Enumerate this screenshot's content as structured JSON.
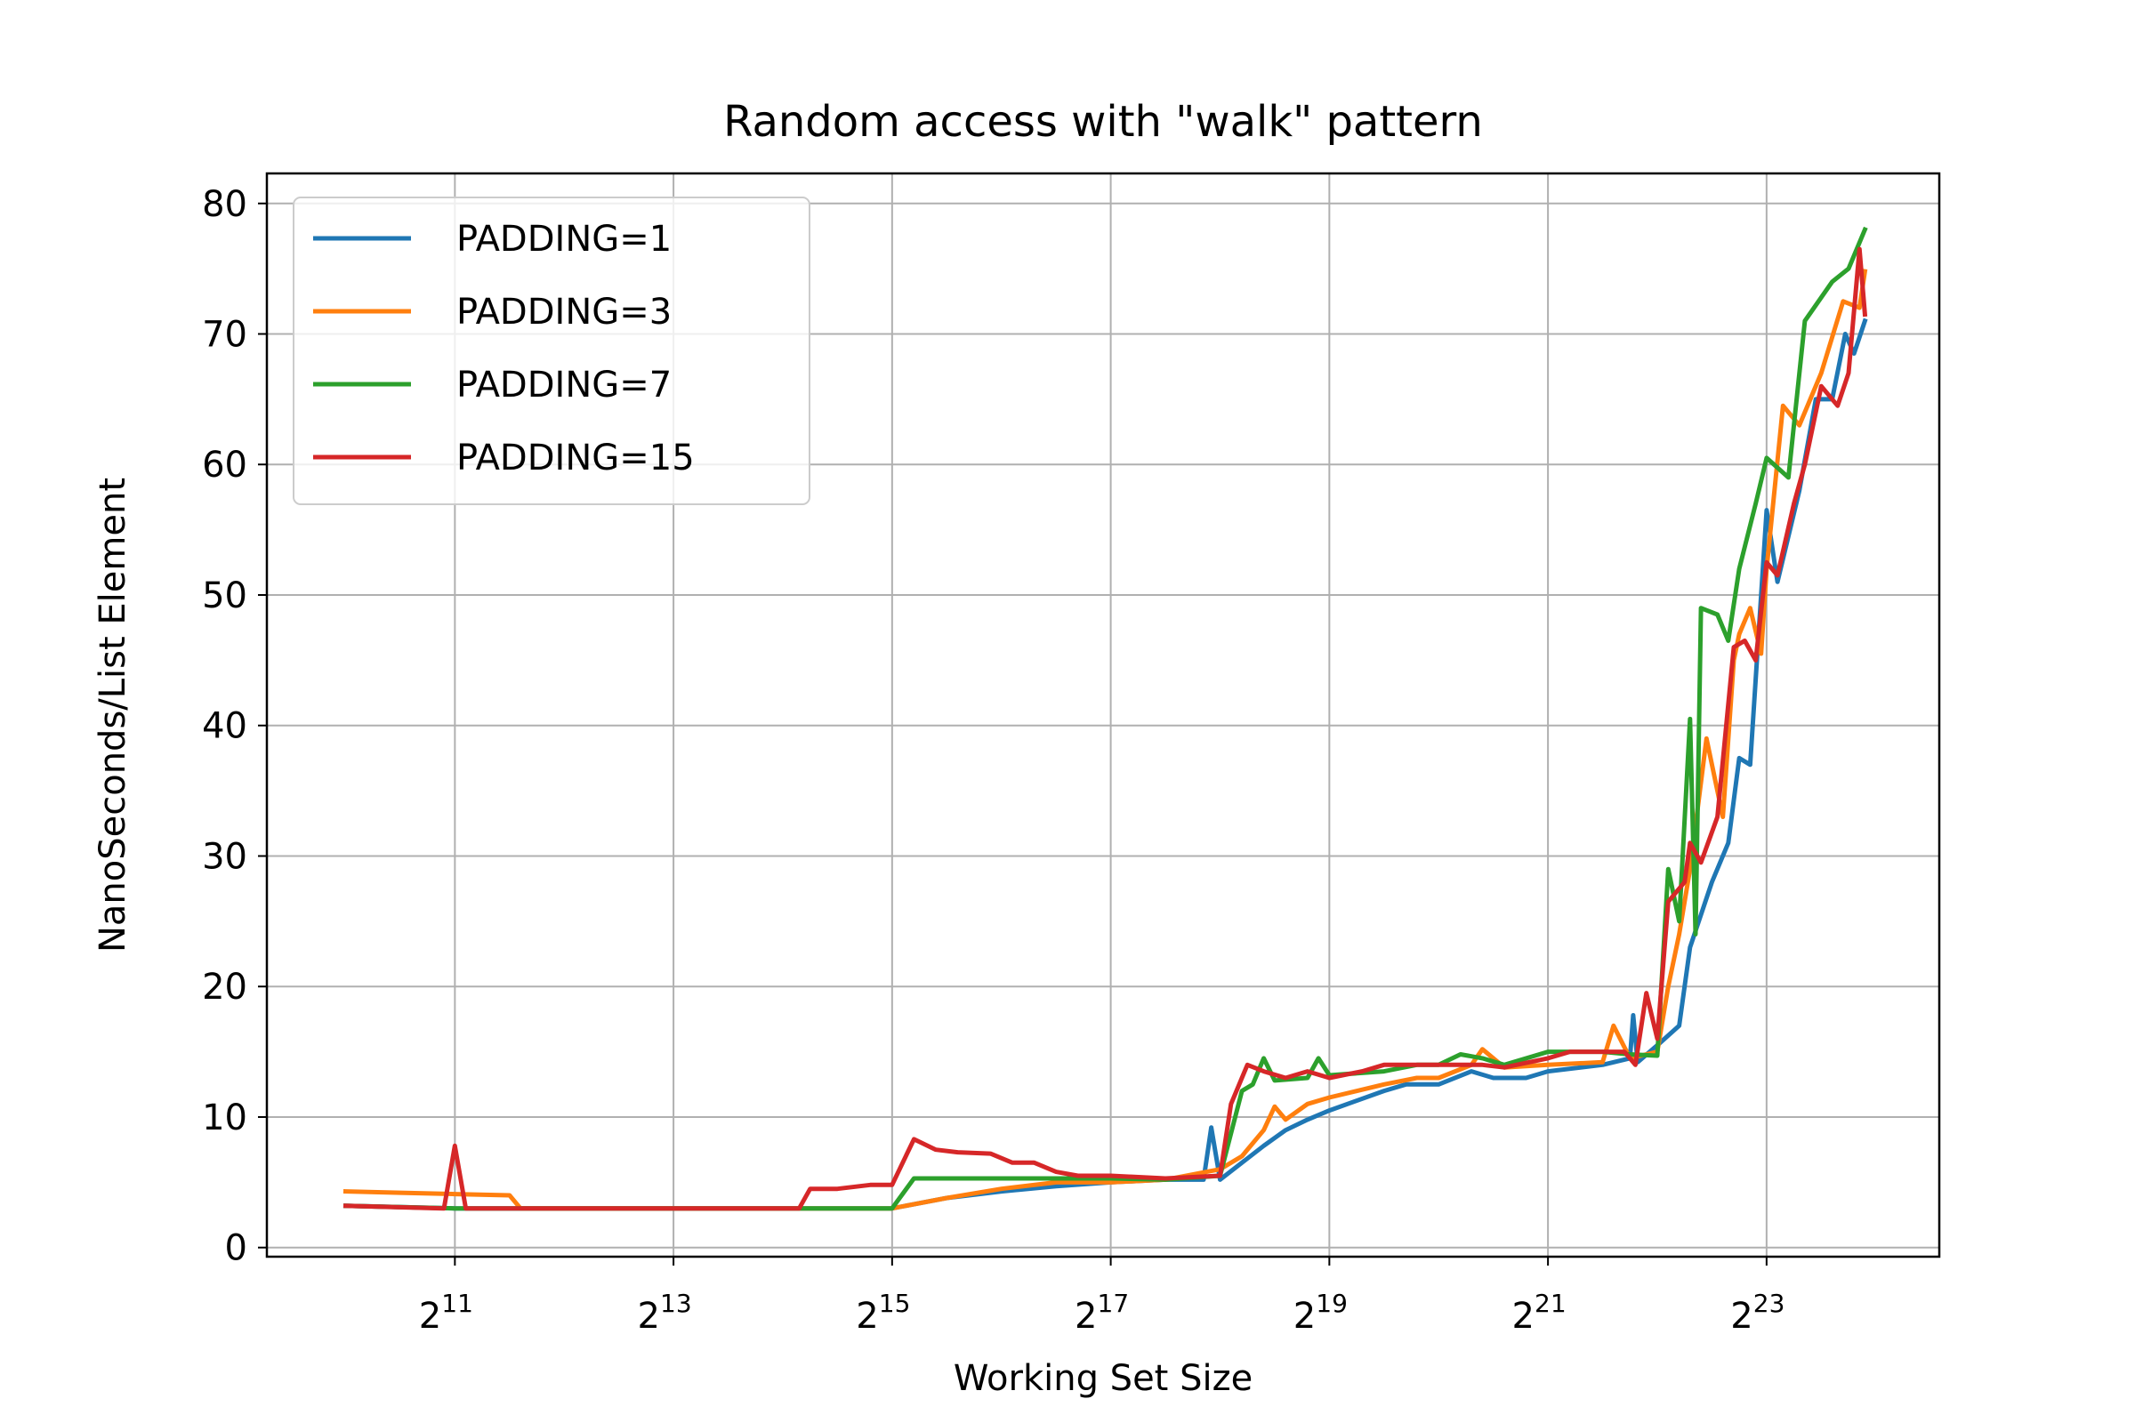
{
  "chart_data": {
    "type": "line",
    "title": "Random access with \"walk\" pattern",
    "xlabel": "Working Set Size",
    "ylabel": "NanoSeconds/List Element",
    "x_scale": "log2",
    "x_base_label": "2",
    "x_ticks_exponents": [
      11,
      13,
      15,
      17,
      19,
      21,
      23
    ],
    "xlim_log2": [
      9.28,
      24.58
    ],
    "ylim": [
      -0.7,
      82.3
    ],
    "y_ticks": [
      0,
      10,
      20,
      30,
      40,
      50,
      60,
      70,
      80
    ],
    "grid": true,
    "legend_position": "upper-left",
    "series": [
      {
        "name": "PADDING=1",
        "color": "#1f77b4",
        "points": [
          [
            10,
            3.2
          ],
          [
            11,
            3.0
          ],
          [
            12,
            3.0
          ],
          [
            13,
            3.0
          ],
          [
            14,
            3.0
          ],
          [
            15,
            3.0
          ],
          [
            15.5,
            3.8
          ],
          [
            16,
            4.3
          ],
          [
            16.5,
            4.7
          ],
          [
            17,
            5.0
          ],
          [
            17.5,
            5.2
          ],
          [
            17.85,
            5.2
          ],
          [
            17.92,
            9.2
          ],
          [
            18.0,
            5.2
          ],
          [
            18.4,
            7.8
          ],
          [
            18.6,
            9.0
          ],
          [
            18.8,
            9.8
          ],
          [
            19,
            10.5
          ],
          [
            19.5,
            12.0
          ],
          [
            19.7,
            12.5
          ],
          [
            20,
            12.5
          ],
          [
            20.3,
            13.5
          ],
          [
            20.5,
            13.0
          ],
          [
            20.8,
            13.0
          ],
          [
            21,
            13.5
          ],
          [
            21.5,
            14.0
          ],
          [
            21.75,
            14.5
          ],
          [
            21.78,
            17.8
          ],
          [
            21.82,
            14.2
          ],
          [
            22,
            15.5
          ],
          [
            22.2,
            17.0
          ],
          [
            22.3,
            23.0
          ],
          [
            22.5,
            28.0
          ],
          [
            22.65,
            31.0
          ],
          [
            22.75,
            37.5
          ],
          [
            22.85,
            37.0
          ],
          [
            23.0,
            56.5
          ],
          [
            23.1,
            51.0
          ],
          [
            23.3,
            58.0
          ],
          [
            23.45,
            65.0
          ],
          [
            23.6,
            65.0
          ],
          [
            23.72,
            70.0
          ],
          [
            23.8,
            68.5
          ],
          [
            23.9,
            71.0
          ]
        ]
      },
      {
        "name": "PADDING=3",
        "color": "#ff7f0e",
        "points": [
          [
            10,
            4.3
          ],
          [
            10.5,
            4.2
          ],
          [
            11,
            4.1
          ],
          [
            11.5,
            4.0
          ],
          [
            11.6,
            3.0
          ],
          [
            12,
            3.0
          ],
          [
            13,
            3.0
          ],
          [
            14,
            3.0
          ],
          [
            15,
            3.0
          ],
          [
            15.5,
            3.8
          ],
          [
            16,
            4.5
          ],
          [
            16.5,
            5.0
          ],
          [
            17,
            5.0
          ],
          [
            17.5,
            5.2
          ],
          [
            18,
            6.0
          ],
          [
            18.2,
            7.0
          ],
          [
            18.4,
            9.0
          ],
          [
            18.5,
            10.8
          ],
          [
            18.6,
            9.8
          ],
          [
            18.8,
            11.0
          ],
          [
            19,
            11.5
          ],
          [
            19.5,
            12.5
          ],
          [
            19.8,
            13.0
          ],
          [
            20,
            13.0
          ],
          [
            20.3,
            14.0
          ],
          [
            20.4,
            15.2
          ],
          [
            20.6,
            13.8
          ],
          [
            21,
            14.0
          ],
          [
            21.5,
            14.2
          ],
          [
            21.6,
            17.0
          ],
          [
            21.75,
            14.5
          ],
          [
            22.0,
            15.0
          ],
          [
            22.1,
            20.0
          ],
          [
            22.2,
            24.0
          ],
          [
            22.3,
            29.0
          ],
          [
            22.45,
            39.0
          ],
          [
            22.6,
            33.0
          ],
          [
            22.7,
            45.0
          ],
          [
            22.75,
            47.0
          ],
          [
            22.85,
            49.0
          ],
          [
            22.95,
            45.5
          ],
          [
            23.0,
            52.0
          ],
          [
            23.15,
            64.5
          ],
          [
            23.3,
            63.0
          ],
          [
            23.5,
            67.0
          ],
          [
            23.7,
            72.5
          ],
          [
            23.85,
            72.0
          ],
          [
            23.9,
            74.8
          ]
        ]
      },
      {
        "name": "PADDING=7",
        "color": "#2ca02c",
        "points": [
          [
            10,
            3.2
          ],
          [
            11,
            3.0
          ],
          [
            12,
            3.0
          ],
          [
            13,
            3.0
          ],
          [
            14,
            3.0
          ],
          [
            15,
            3.0
          ],
          [
            15.2,
            5.3
          ],
          [
            16,
            5.3
          ],
          [
            16.5,
            5.3
          ],
          [
            17,
            5.3
          ],
          [
            17.5,
            5.2
          ],
          [
            18,
            5.5
          ],
          [
            18.2,
            12.0
          ],
          [
            18.3,
            12.5
          ],
          [
            18.4,
            14.5
          ],
          [
            18.5,
            12.8
          ],
          [
            18.8,
            13.0
          ],
          [
            18.9,
            14.5
          ],
          [
            19.0,
            13.2
          ],
          [
            19.5,
            13.5
          ],
          [
            19.8,
            14.0
          ],
          [
            20,
            14.0
          ],
          [
            20.2,
            14.8
          ],
          [
            20.4,
            14.5
          ],
          [
            20.6,
            14.0
          ],
          [
            21,
            15.0
          ],
          [
            21.5,
            15.0
          ],
          [
            21.75,
            14.8
          ],
          [
            22.0,
            14.7
          ],
          [
            22.1,
            29.0
          ],
          [
            22.2,
            25.0
          ],
          [
            22.3,
            40.5
          ],
          [
            22.35,
            24.0
          ],
          [
            22.4,
            49.0
          ],
          [
            22.55,
            48.5
          ],
          [
            22.65,
            46.5
          ],
          [
            22.75,
            52.0
          ],
          [
            22.9,
            57.0
          ],
          [
            23.0,
            60.5
          ],
          [
            23.2,
            59.0
          ],
          [
            23.35,
            71.0
          ],
          [
            23.6,
            74.0
          ],
          [
            23.75,
            75.0
          ],
          [
            23.9,
            78.0
          ]
        ]
      },
      {
        "name": "PADDING=15",
        "color": "#d62728",
        "points": [
          [
            10,
            3.2
          ],
          [
            10.9,
            3.0
          ],
          [
            11.0,
            7.8
          ],
          [
            11.1,
            3.0
          ],
          [
            12,
            3.0
          ],
          [
            13,
            3.0
          ],
          [
            14,
            3.0
          ],
          [
            14.15,
            3.0
          ],
          [
            14.25,
            4.5
          ],
          [
            14.5,
            4.5
          ],
          [
            14.8,
            4.8
          ],
          [
            15,
            4.8
          ],
          [
            15.2,
            8.3
          ],
          [
            15.4,
            7.5
          ],
          [
            15.6,
            7.3
          ],
          [
            15.9,
            7.2
          ],
          [
            16.1,
            6.5
          ],
          [
            16.3,
            6.5
          ],
          [
            16.5,
            5.8
          ],
          [
            16.7,
            5.5
          ],
          [
            17,
            5.5
          ],
          [
            17.5,
            5.3
          ],
          [
            18,
            5.5
          ],
          [
            18.1,
            11.0
          ],
          [
            18.25,
            14.0
          ],
          [
            18.4,
            13.5
          ],
          [
            18.6,
            13.0
          ],
          [
            18.8,
            13.5
          ],
          [
            19.0,
            13.0
          ],
          [
            19.3,
            13.5
          ],
          [
            19.5,
            14.0
          ],
          [
            19.8,
            14.0
          ],
          [
            20,
            14.0
          ],
          [
            20.4,
            14.0
          ],
          [
            20.6,
            13.8
          ],
          [
            21,
            14.5
          ],
          [
            21.2,
            15.0
          ],
          [
            21.4,
            15.0
          ],
          [
            21.55,
            15.0
          ],
          [
            21.7,
            15.0
          ],
          [
            21.8,
            14.0
          ],
          [
            21.9,
            19.5
          ],
          [
            22.0,
            16.0
          ],
          [
            22.1,
            26.5
          ],
          [
            22.25,
            28.0
          ],
          [
            22.3,
            31.0
          ],
          [
            22.4,
            29.5
          ],
          [
            22.55,
            33.0
          ],
          [
            22.7,
            46.0
          ],
          [
            22.8,
            46.5
          ],
          [
            22.9,
            45.0
          ],
          [
            23.0,
            52.5
          ],
          [
            23.1,
            51.5
          ],
          [
            23.25,
            57.0
          ],
          [
            23.35,
            60.0
          ],
          [
            23.5,
            66.0
          ],
          [
            23.65,
            64.5
          ],
          [
            23.75,
            67.0
          ],
          [
            23.85,
            76.5
          ],
          [
            23.9,
            71.5
          ]
        ]
      }
    ]
  }
}
